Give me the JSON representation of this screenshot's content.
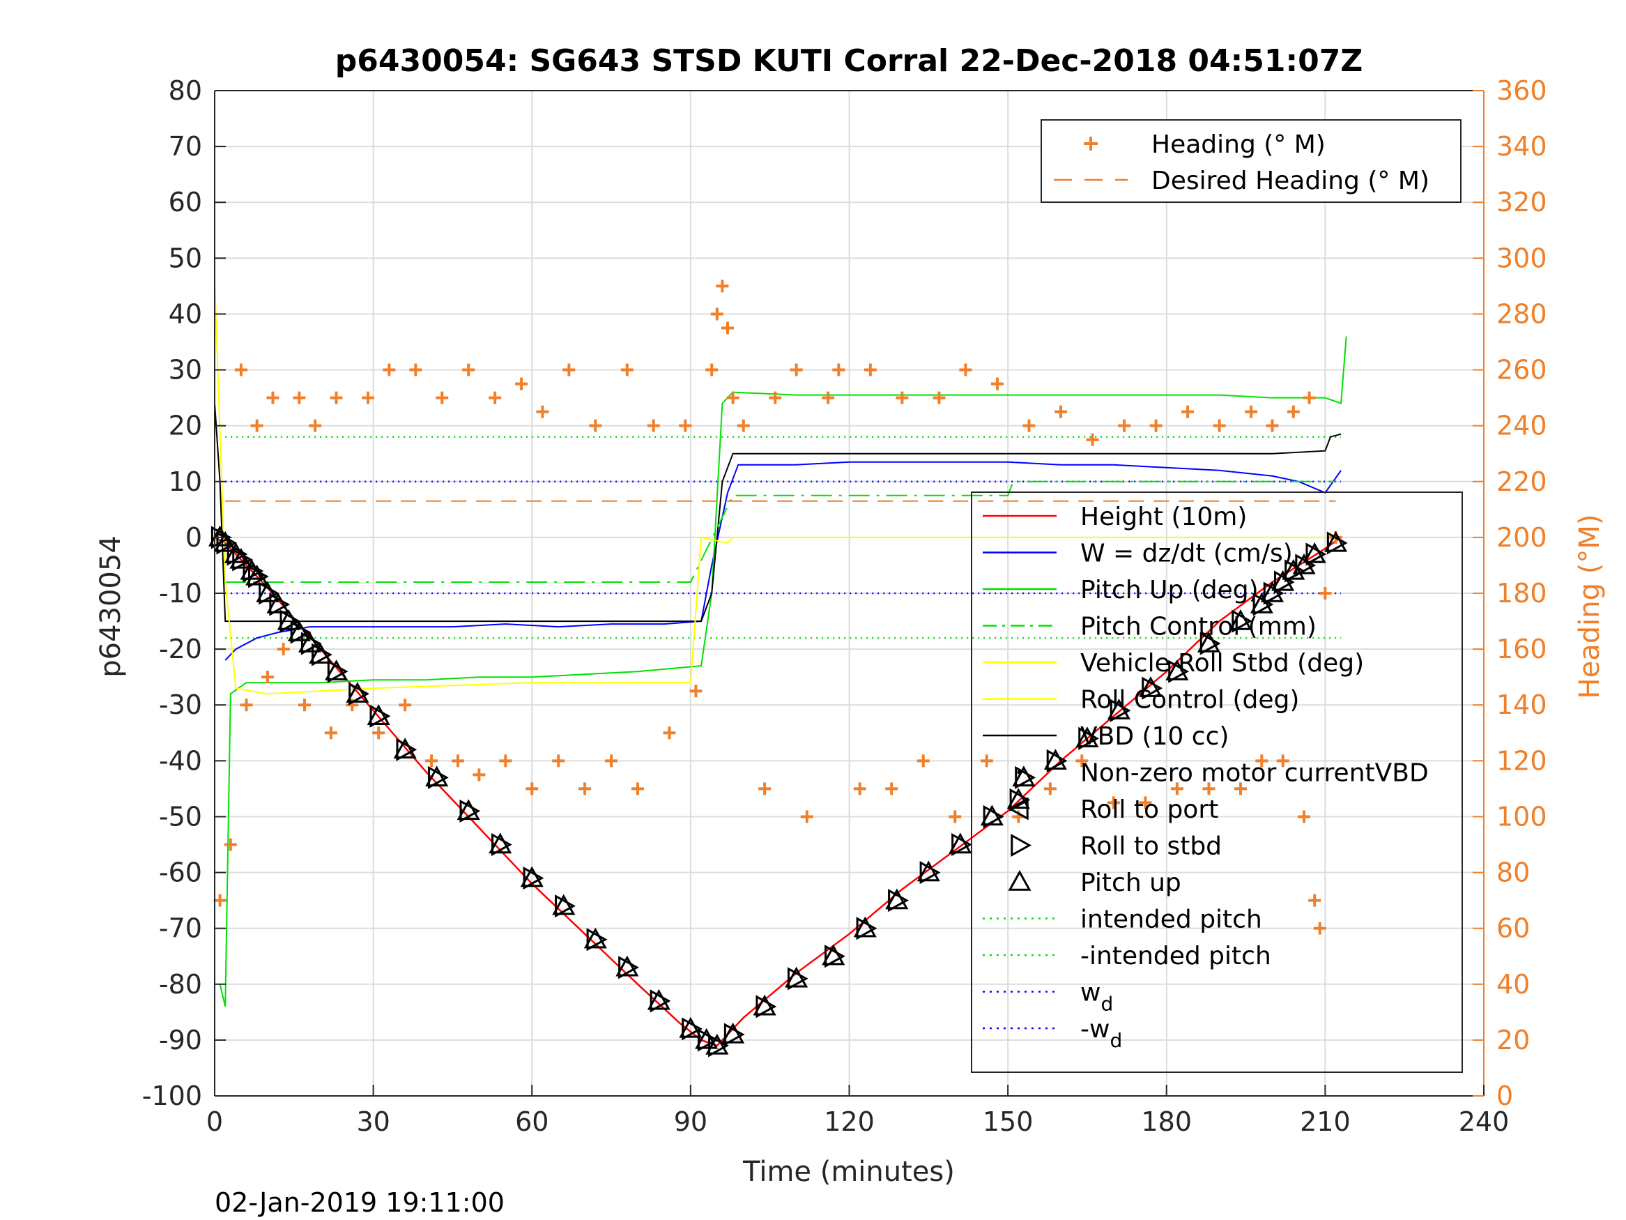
{
  "chart_data": {
    "type": "line",
    "title": "p6430054: SG643 STSD KUTI Corral 22-Dec-2018 04:51:07Z",
    "xlabel": "Time (minutes)",
    "ylabel": "p6430054",
    "ylabel_right": "Heading (°M)",
    "xlim": [
      0,
      240
    ],
    "ylim": [
      -100,
      80
    ],
    "ylim_right": [
      0,
      360
    ],
    "x_ticks": [
      "0",
      "30",
      "60",
      "90",
      "120",
      "150",
      "180",
      "210",
      "240"
    ],
    "y_ticks": [
      "80",
      "70",
      "60",
      "50",
      "40",
      "30",
      "20",
      "10",
      "0",
      "-10",
      "-20",
      "-30",
      "-40",
      "-50",
      "-60",
      "-70",
      "-80",
      "-90",
      "-100"
    ],
    "y_ticks_right": [
      "360",
      "340",
      "320",
      "300",
      "280",
      "260",
      "240",
      "220",
      "200",
      "180",
      "160",
      "140",
      "120",
      "100",
      "80",
      "60",
      "40",
      "20",
      "0"
    ],
    "grid": true,
    "timestamp": "02-Jan-2019 19:11:00",
    "legend_top": [
      {
        "label": "Heading (° M)",
        "color": "#f07f2a",
        "style": "plus"
      },
      {
        "label": "Desired Heading (° M)",
        "color": "#f07f2a",
        "style": "dash"
      }
    ],
    "legend_main": [
      {
        "label": "Height (10m)",
        "color": "#ff0000",
        "style": "line"
      },
      {
        "label": "W = dz/dt (cm/s)",
        "color": "#0000ff",
        "style": "line"
      },
      {
        "label": "Pitch Up (deg)",
        "color": "#00e000",
        "style": "line"
      },
      {
        "label": "Pitch Control (mm)",
        "color": "#00e000",
        "style": "dashdot"
      },
      {
        "label": "Vehicle Roll Stbd (deg)",
        "color": "#ffff00",
        "style": "line"
      },
      {
        "label": "Roll Control (deg)",
        "color": "#ffff00",
        "style": "line"
      },
      {
        "label": "VBD (10 cc)",
        "color": "#000000",
        "style": "line"
      },
      {
        "label": "Non-zero motor currentVBD",
        "color": "#000000",
        "style": "dot"
      },
      {
        "label": "Roll to port",
        "color": "#000000",
        "style": "tri-left"
      },
      {
        "label": "Roll to stbd",
        "color": "#000000",
        "style": "tri-right"
      },
      {
        "label": "Pitch up",
        "color": "#000000",
        "style": "tri-up"
      },
      {
        "label": "intended pitch",
        "color": "#00e000",
        "style": "dotted"
      },
      {
        "label": "-intended pitch",
        "color": "#00e000",
        "style": "dotted"
      },
      {
        "label": "w",
        "sub": "d",
        "color": "#0000ff",
        "style": "dotted"
      },
      {
        "label": "-w",
        "sub": "d",
        "color": "#0000ff",
        "style": "dotted"
      }
    ],
    "series": [
      {
        "name": "Height (10m)",
        "color": "#ff0000",
        "x": [
          0,
          2,
          10,
          20,
          30,
          40,
          50,
          60,
          70,
          80,
          88,
          92,
          95,
          100,
          110,
          120,
          130,
          140,
          150,
          160,
          170,
          180,
          190,
          200,
          210,
          213
        ],
        "y": [
          0,
          -1,
          -9,
          -20,
          -31,
          -42,
          -52,
          -62,
          -71,
          -80,
          -87,
          -90,
          -91,
          -86,
          -78,
          -71,
          -63,
          -56,
          -49,
          -40,
          -32,
          -24,
          -15,
          -8,
          -2,
          0
        ]
      },
      {
        "name": "W = dz/dt (cm/s)",
        "color": "#0000ff",
        "x": [
          2,
          4,
          8,
          12,
          18,
          25,
          35,
          45,
          55,
          65,
          75,
          85,
          92,
          94,
          97,
          99,
          110,
          120,
          130,
          140,
          150,
          160,
          170,
          180,
          190,
          200,
          205,
          210,
          213
        ],
        "y": [
          -22,
          -20,
          -18,
          -17,
          -16,
          -16,
          -16,
          -16,
          -15.5,
          -16,
          -15.5,
          -15.5,
          -15,
          -5,
          8,
          13,
          13,
          13.5,
          13.5,
          13.5,
          13.5,
          13,
          13,
          12.5,
          12,
          11,
          10,
          8,
          12
        ]
      },
      {
        "name": "Pitch Up (deg)",
        "color": "#00e000",
        "x": [
          1,
          2,
          3,
          6,
          12,
          20,
          30,
          40,
          50,
          60,
          70,
          80,
          92,
          94,
          96,
          98,
          110,
          120,
          130,
          140,
          150,
          160,
          170,
          180,
          190,
          200,
          210,
          213,
          214
        ],
        "y": [
          -80,
          -84,
          -28,
          -26,
          -26,
          -26,
          -25.5,
          -25.5,
          -25,
          -25,
          -24.5,
          -24,
          -23,
          -10,
          24,
          26,
          25.5,
          25.5,
          25.5,
          25.5,
          25.5,
          25.5,
          25.5,
          25.5,
          25.5,
          25,
          25,
          24,
          36
        ]
      },
      {
        "name": "VBD (10 cc)",
        "color": "#000000",
        "x": [
          0,
          1,
          2,
          10,
          40,
          80,
          92,
          94,
          96,
          98,
          120,
          150,
          180,
          200,
          210,
          211,
          213
        ],
        "y": [
          24,
          10,
          -15,
          -15,
          -15,
          -15,
          -15,
          -10,
          10,
          15,
          15,
          15,
          15,
          15,
          15.5,
          18,
          18.5
        ]
      },
      {
        "name": "Pitch Control (mm)",
        "color": "#00e000",
        "x": [
          2,
          90,
          98,
          150,
          151,
          212
        ],
        "y": [
          -8,
          -8,
          7.5,
          7.5,
          10,
          10
        ]
      },
      {
        "name": "Vehicle Roll Stbd (deg)",
        "color": "#ffff00",
        "x": [
          0,
          2,
          4,
          10,
          30,
          60,
          90,
          92,
          97,
          98,
          120,
          150,
          180,
          212
        ],
        "y": [
          46,
          -8,
          -27,
          -28,
          -27,
          -26,
          -26,
          0,
          -1,
          0,
          0,
          0,
          0,
          0
        ]
      },
      {
        "name": "Heading (° M)",
        "color": "#f07f2a",
        "x": [
          1,
          3,
          5,
          6,
          8,
          10,
          11,
          13,
          16,
          17,
          19,
          22,
          23,
          26,
          29,
          31,
          33,
          36,
          38,
          41,
          43,
          46,
          48,
          50,
          53,
          55,
          58,
          60,
          62,
          65,
          67,
          70,
          72,
          75,
          78,
          80,
          83,
          86,
          89,
          91,
          94,
          95,
          96,
          97,
          98,
          100,
          104,
          106,
          110,
          112,
          116,
          118,
          122,
          124,
          128,
          130,
          134,
          137,
          140,
          142,
          146,
          148,
          152,
          154,
          158,
          160,
          164,
          166,
          170,
          172,
          176,
          178,
          182,
          184,
          188,
          190,
          194,
          196,
          198,
          200,
          202,
          204,
          206,
          207,
          208,
          209,
          210,
          212
        ],
        "y": [
          70,
          90,
          260,
          140,
          240,
          150,
          250,
          160,
          250,
          140,
          240,
          130,
          250,
          140,
          250,
          130,
          260,
          140,
          260,
          120,
          250,
          120,
          260,
          115,
          250,
          120,
          255,
          110,
          245,
          120,
          260,
          110,
          240,
          120,
          260,
          110,
          240,
          130,
          240,
          145,
          260,
          280,
          290,
          275,
          250,
          240,
          110,
          250,
          260,
          100,
          250,
          260,
          110,
          260,
          110,
          250,
          120,
          250,
          100,
          260,
          120,
          255,
          100,
          240,
          110,
          245,
          120,
          235,
          105,
          240,
          105,
          240,
          110,
          245,
          110,
          240,
          110,
          245,
          120,
          240,
          120,
          245,
          100,
          250,
          70,
          60,
          180,
          200
        ]
      },
      {
        "name": "Desired Heading (° M)",
        "color": "#f07f2a",
        "x": [
          2,
          212
        ],
        "y": [
          213,
          213
        ]
      }
    ],
    "markers": {
      "x": [
        1,
        2,
        4,
        5,
        7,
        8,
        10,
        12,
        14,
        16,
        18,
        20,
        23,
        27,
        31,
        36,
        42,
        48,
        54,
        60,
        66,
        72,
        78,
        84,
        90,
        93,
        95,
        98,
        104,
        110,
        117,
        123,
        129,
        135,
        141,
        147,
        152,
        153,
        159,
        165,
        171,
        177,
        182,
        188,
        194,
        198,
        200,
        202,
        204,
        206,
        208,
        212
      ],
      "y": [
        0,
        -1,
        -3,
        -4,
        -6,
        -7,
        -10,
        -12,
        -15,
        -17,
        -19,
        -21,
        -24,
        -28,
        -32,
        -38,
        -43,
        -49,
        -55,
        -61,
        -66,
        -72,
        -77,
        -83,
        -88,
        -90,
        -91,
        -89,
        -84,
        -79,
        -75,
        -70,
        -65,
        -60,
        -55,
        -50,
        -47,
        -43,
        -40,
        -36,
        -31,
        -27,
        -24,
        -19,
        -15,
        -12,
        -10,
        -8,
        -6,
        -5,
        -3,
        -1
      ]
    }
  }
}
